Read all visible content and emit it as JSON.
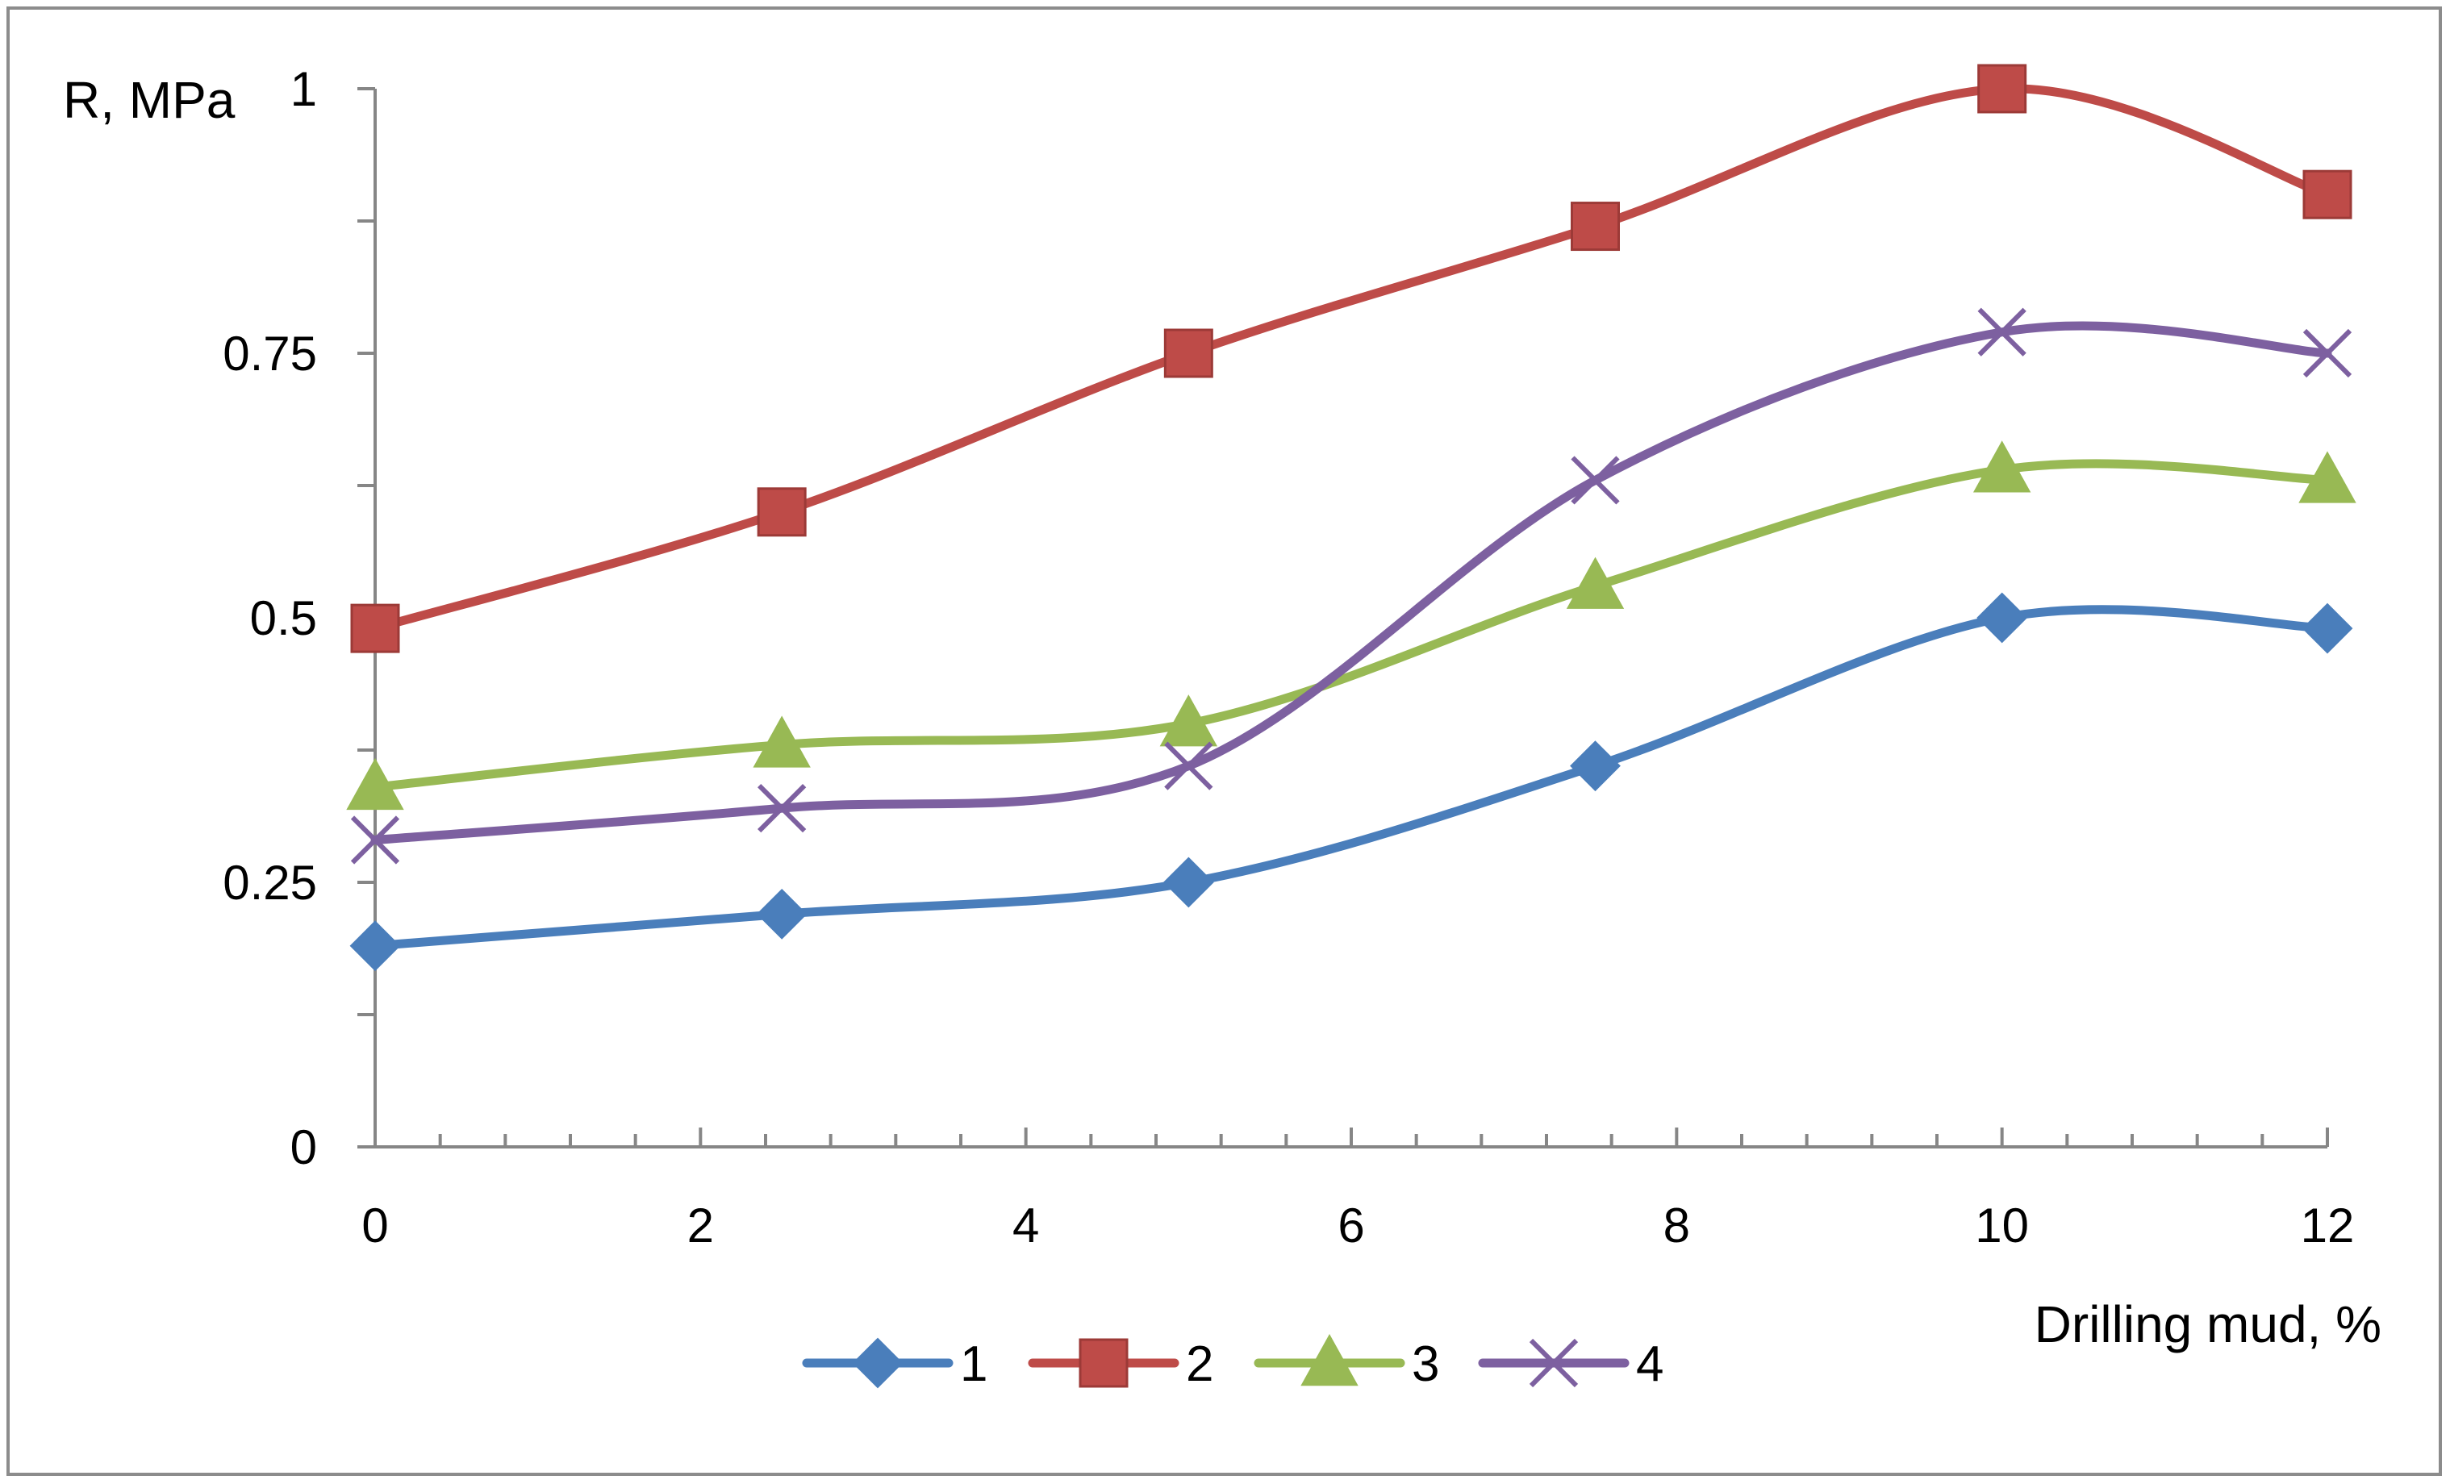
{
  "chart_data": {
    "type": "line",
    "title": "",
    "xlabel": "Drilling mud, %",
    "ylabel": "R, MPa",
    "xlim": [
      0,
      12
    ],
    "ylim": [
      0,
      1
    ],
    "x_ticks": [
      "0",
      "2",
      "4",
      "6",
      "8",
      "10",
      "12"
    ],
    "y_ticks": [
      "0",
      "0.25",
      "0.5",
      "0.75",
      "1"
    ],
    "grid": false,
    "legend_position": "bottom",
    "x": [
      0,
      2.5,
      5,
      7.5,
      10,
      12
    ],
    "series": [
      {
        "name": "1",
        "color": "#4a7ebb",
        "marker": "diamond",
        "values": [
          0.19,
          0.22,
          0.25,
          0.36,
          0.5,
          0.49
        ]
      },
      {
        "name": "2",
        "color": "#be4b48",
        "marker": "square",
        "values": [
          0.49,
          0.6,
          0.75,
          0.87,
          1.0,
          0.9
        ]
      },
      {
        "name": "3",
        "color": "#98b954",
        "marker": "triangle",
        "values": [
          0.34,
          0.38,
          0.4,
          0.53,
          0.64,
          0.63
        ]
      },
      {
        "name": "4",
        "color": "#7d60a0",
        "marker": "x",
        "values": [
          0.29,
          0.32,
          0.36,
          0.63,
          0.77,
          0.75
        ]
      }
    ]
  }
}
